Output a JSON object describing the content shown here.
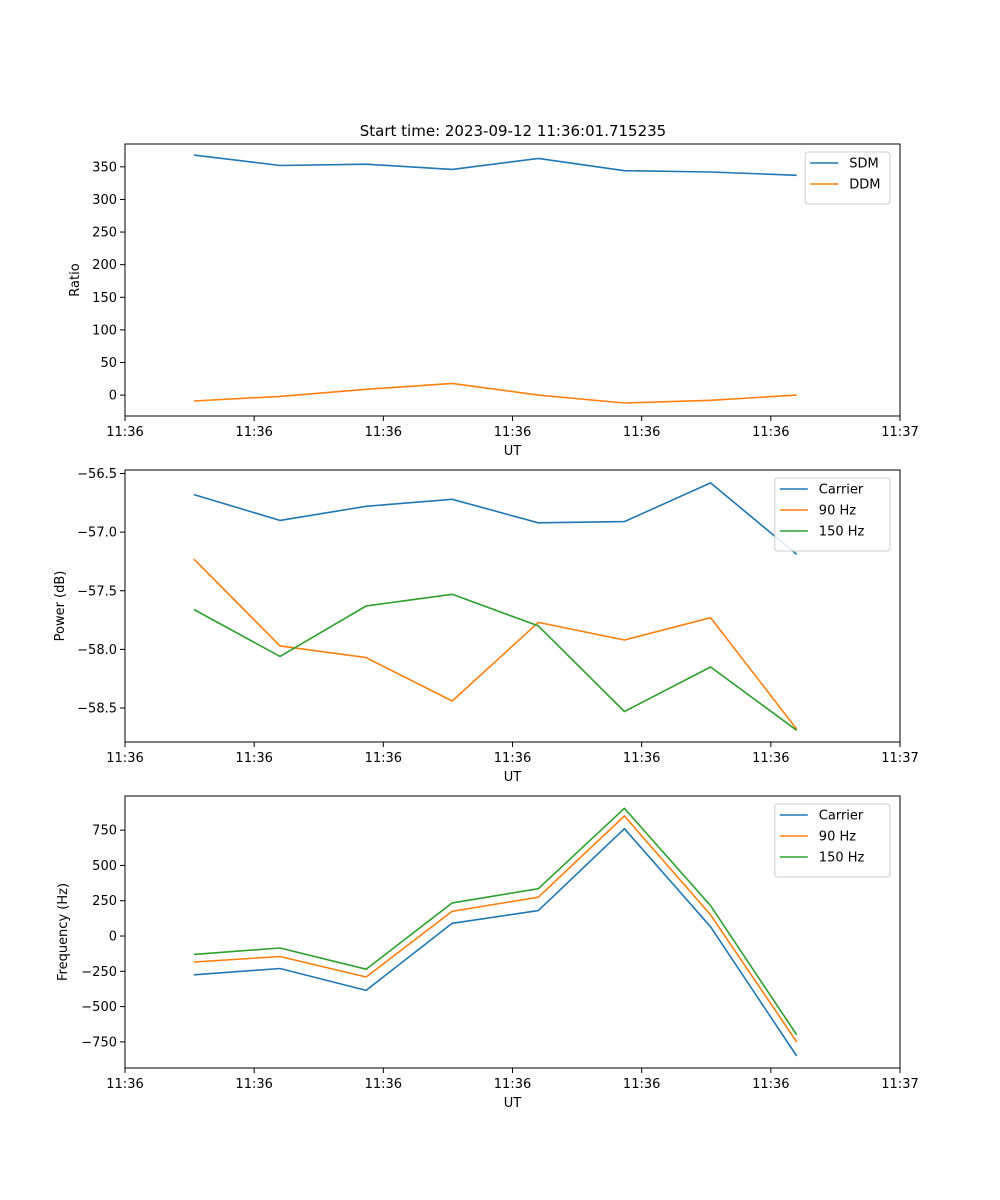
{
  "figure_title": "Start time: 2023-09-12 11:36:01.715235",
  "chart_data": [
    {
      "type": "line",
      "title": "Start time: 2023-09-12 11:36:01.715235",
      "xlabel": "UT",
      "ylabel": "Ratio",
      "x": [
        1,
        2,
        3,
        4,
        5,
        6,
        7,
        8
      ],
      "xlim": [
        0.2,
        9.2
      ],
      "x_ticks": [
        0.2,
        1.7,
        3.2,
        4.7,
        6.2,
        7.7,
        9.2
      ],
      "x_tick_labels": [
        "11:36",
        "11:36",
        "11:36",
        "11:36",
        "11:36",
        "11:36",
        "11:37"
      ],
      "ylim": [
        -32,
        385
      ],
      "y_ticks": [
        0,
        50,
        100,
        150,
        200,
        250,
        300,
        350
      ],
      "y_tick_labels": [
        "0",
        "50",
        "100",
        "150",
        "200",
        "250",
        "300",
        "350"
      ],
      "legend_position": "top-right",
      "series": [
        {
          "name": "SDM",
          "color": "#1f77b4",
          "values": [
            368,
            352,
            354,
            346,
            363,
            344,
            342,
            337
          ]
        },
        {
          "name": "DDM",
          "color": "#ff7f0e",
          "values": [
            -9,
            -2,
            9,
            18,
            0,
            -12,
            -8,
            0
          ]
        }
      ]
    },
    {
      "type": "line",
      "title": "",
      "xlabel": "UT",
      "ylabel": "Power (dB)",
      "x": [
        1,
        2,
        3,
        4,
        5,
        6,
        7,
        8
      ],
      "xlim": [
        0.2,
        9.2
      ],
      "x_ticks": [
        0.2,
        1.7,
        3.2,
        4.7,
        6.2,
        7.7,
        9.2
      ],
      "x_tick_labels": [
        "11:36",
        "11:36",
        "11:36",
        "11:36",
        "11:36",
        "11:36",
        "11:37"
      ],
      "ylim": [
        -58.79,
        -56.47
      ],
      "y_ticks": [
        -56.5,
        -57.0,
        -57.5,
        -58.0,
        -58.5
      ],
      "y_tick_labels": [
        "−56.5",
        "−57.0",
        "−57.5",
        "−58.0",
        "−58.5"
      ],
      "legend_position": "top-right",
      "series": [
        {
          "name": "Carrier",
          "color": "#1f77b4",
          "values": [
            -56.68,
            -56.9,
            -56.78,
            -56.72,
            -56.92,
            -56.91,
            -56.58,
            -57.19
          ]
        },
        {
          "name": "90 Hz",
          "color": "#ff7f0e",
          "values": [
            -57.23,
            -57.97,
            -58.07,
            -58.44,
            -57.77,
            -57.92,
            -57.73,
            -58.68
          ]
        },
        {
          "name": "150 Hz",
          "color": "#2ca02c",
          "values": [
            -57.66,
            -58.06,
            -57.63,
            -57.53,
            -57.8,
            -58.53,
            -58.15,
            -58.69
          ]
        }
      ]
    },
    {
      "type": "line",
      "title": "",
      "xlabel": "UT",
      "ylabel": "Frequency (Hz)",
      "x": [
        1,
        2,
        3,
        4,
        5,
        6,
        7,
        8
      ],
      "xlim": [
        0.2,
        9.2
      ],
      "x_ticks": [
        0.2,
        1.7,
        3.2,
        4.7,
        6.2,
        7.7,
        9.2
      ],
      "x_tick_labels": [
        "11:36",
        "11:36",
        "11:36",
        "11:36",
        "11:36",
        "11:36",
        "11:37"
      ],
      "ylim": [
        -935,
        992
      ],
      "y_ticks": [
        750,
        500,
        250,
        0,
        -250,
        -500,
        -750
      ],
      "y_tick_labels": [
        "750",
        "500",
        "250",
        "0",
        "−250",
        "−500",
        "−750"
      ],
      "legend_position": "top-right",
      "series": [
        {
          "name": "Carrier",
          "color": "#1f77b4",
          "values": [
            -275,
            -230,
            -385,
            90,
            180,
            760,
            65,
            -850
          ]
        },
        {
          "name": "90 Hz",
          "color": "#ff7f0e",
          "values": [
            -185,
            -145,
            -290,
            175,
            275,
            850,
            150,
            -750
          ]
        },
        {
          "name": "150 Hz",
          "color": "#2ca02c",
          "values": [
            -130,
            -85,
            -235,
            235,
            335,
            905,
            215,
            -700
          ]
        }
      ]
    }
  ]
}
